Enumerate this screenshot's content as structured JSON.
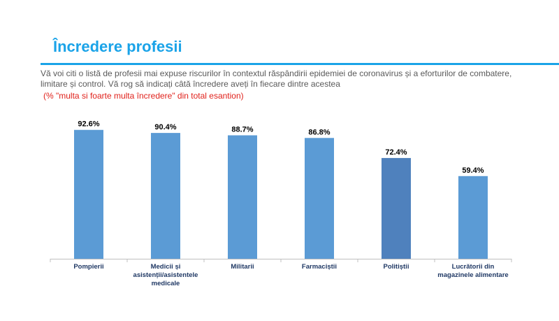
{
  "header": {
    "title": "Încredere profesii",
    "question": "Vă voi citi o listă de profesii mai expuse riscurilor în contextul răspândirii epidemiei de coronavirus și a eforturilor de combatere, limitare și control. Vă rog să indicați câtă încredere aveți în fiecare dintre acestea",
    "note": "(% \"multa si foarte multa încredere\" din total esantion)"
  },
  "chart_data": {
    "type": "bar",
    "title": "Încredere profesii",
    "categories": [
      [
        "Pompierii"
      ],
      [
        "Medicii și",
        "asistenții/asistentele",
        "medicale"
      ],
      [
        "Militarii"
      ],
      [
        "Farmaciștii"
      ],
      [
        "Politiștii"
      ],
      [
        "Lucrătorii din",
        "magazinele alimentare"
      ]
    ],
    "values": [
      92.6,
      90.4,
      88.7,
      86.8,
      72.4,
      59.4
    ],
    "value_labels": [
      "92.6%",
      "90.4%",
      "88.7%",
      "86.8%",
      "72.4%",
      "59.4%"
    ],
    "unit": "%",
    "ylim": [
      0,
      100
    ],
    "xlabel": "",
    "ylabel": "",
    "grid": false,
    "colors": {
      "bar": "#5b9bd5",
      "highlight_bar": "#4f81bd",
      "axis": "#bfbfbf"
    },
    "highlight_index": 4
  }
}
